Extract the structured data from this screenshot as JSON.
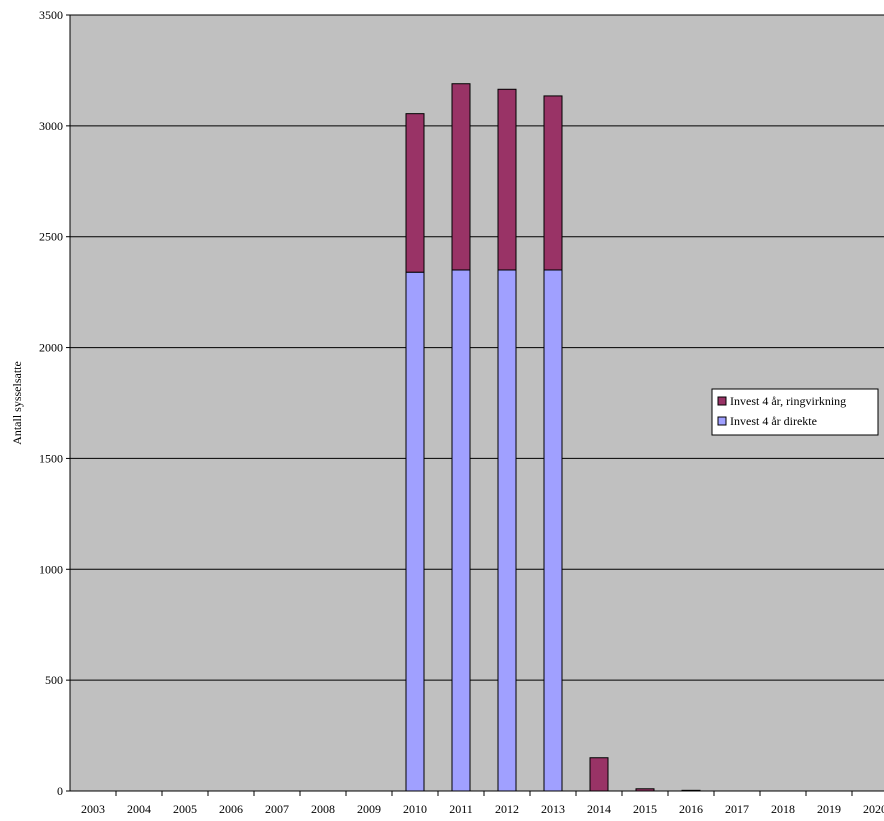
{
  "chart_data": {
    "type": "bar",
    "stacked": true,
    "title": "",
    "xlabel": "",
    "ylabel": "Antall sysselsatte",
    "ylim": [
      0,
      3500
    ],
    "yticks": [
      0,
      500,
      1000,
      1500,
      2000,
      2500,
      3000,
      3500
    ],
    "grid": true,
    "legend_position": "right",
    "categories": [
      "2003",
      "2004",
      "2005",
      "2006",
      "2007",
      "2008",
      "2009",
      "2010",
      "2011",
      "2012",
      "2013",
      "2014",
      "2015",
      "2016",
      "2017",
      "2018",
      "2019",
      "2020"
    ],
    "series": [
      {
        "name": "Invest 4 år direkte",
        "color": "#a0a0ff",
        "values": [
          0,
          0,
          0,
          0,
          0,
          0,
          0,
          2340,
          2350,
          2350,
          2350,
          0,
          0,
          0,
          0,
          0,
          0,
          0
        ]
      },
      {
        "name": "Invest 4 år, ringvirkning",
        "color": "#993366",
        "values": [
          0,
          0,
          0,
          0,
          0,
          0,
          0,
          715,
          840,
          815,
          785,
          150,
          10,
          3,
          0,
          0,
          0,
          0
        ]
      }
    ],
    "plot_background": "#c0c0c0"
  }
}
